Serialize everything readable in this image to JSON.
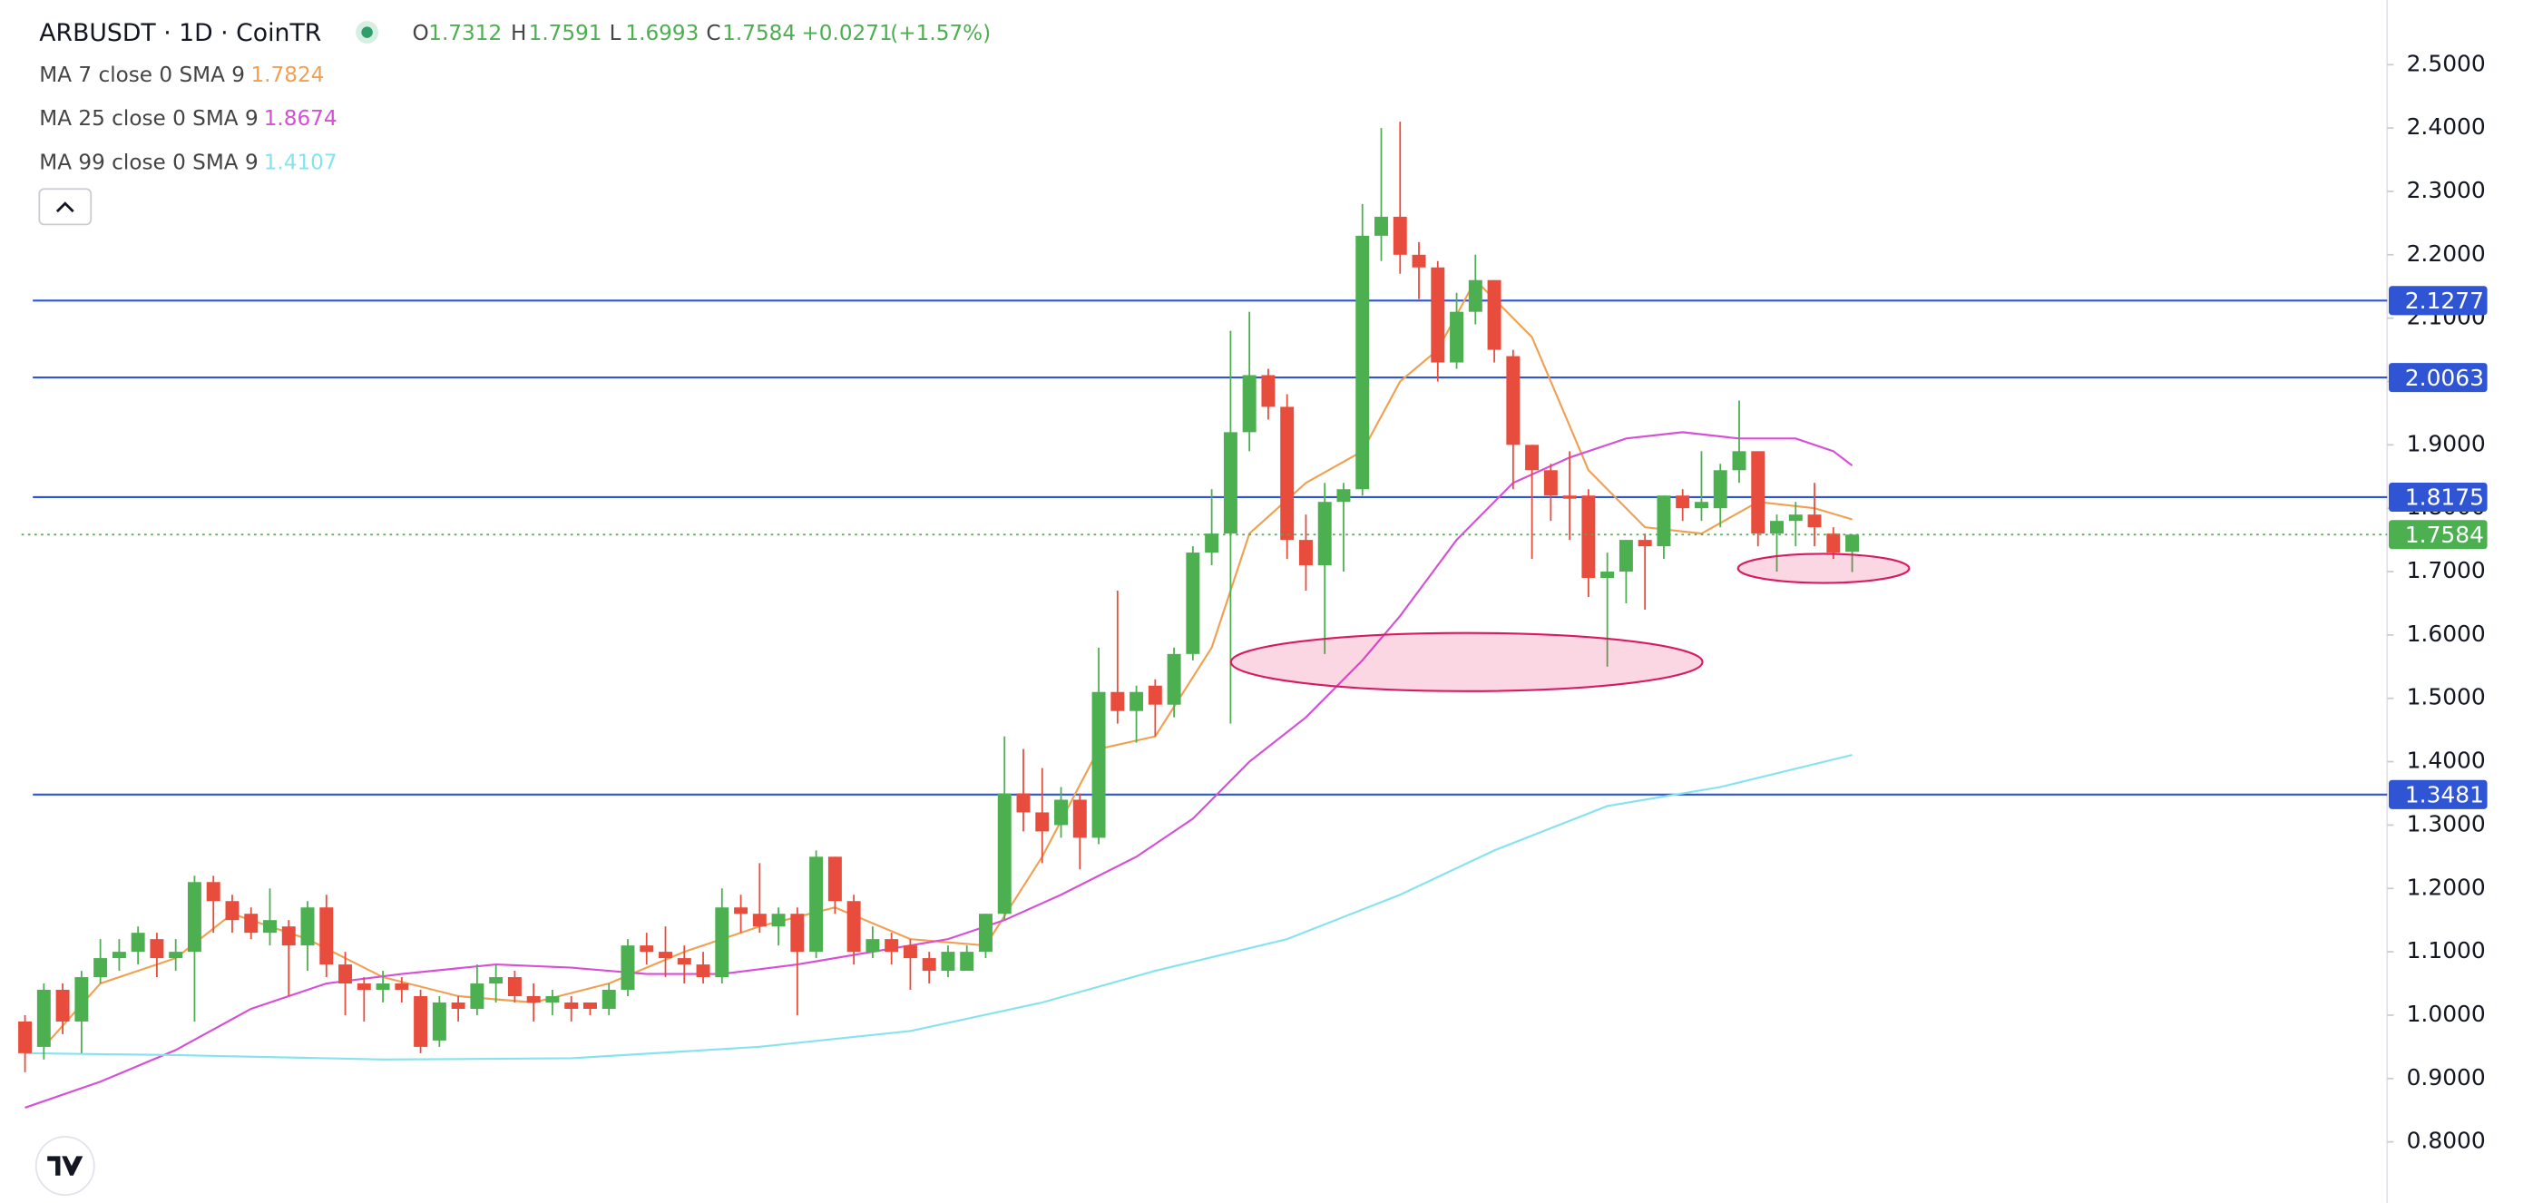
{
  "header": {
    "symbol": "ARBUSDT · 1D · CoinTR",
    "ohlc_labels": [
      "O",
      "H",
      "L",
      "C"
    ],
    "change": "+0.0271",
    "change_pct": "(+1.57%)"
  },
  "chart_data": {
    "type": "candlestick",
    "up_color": "#4caf50",
    "down_color": "#e74c3c",
    "xlim": [
      -1.3,
      125.4
    ],
    "ylim": [
      0.7,
      2.6
    ],
    "yticks": [
      {
        "value": 2.5,
        "label": "2.5000"
      },
      {
        "value": 2.4,
        "label": "2.4000"
      },
      {
        "value": 2.3,
        "label": "2.3000"
      },
      {
        "value": 2.2,
        "label": "2.2000"
      },
      {
        "value": 2.1,
        "label": "2.1000"
      },
      {
        "value": 2.0,
        "label": "2.0000"
      },
      {
        "value": 1.9,
        "label": "1.9000"
      },
      {
        "value": 1.8,
        "label": "1.8000"
      },
      {
        "value": 1.7,
        "label": "1.7000"
      },
      {
        "value": 1.6,
        "label": "1.6000"
      },
      {
        "value": 1.5,
        "label": "1.5000"
      },
      {
        "value": 1.4,
        "label": "1.4000"
      },
      {
        "value": 1.3,
        "label": "1.3000"
      },
      {
        "value": 1.2,
        "label": "1.2000"
      },
      {
        "value": 1.1,
        "label": "1.1000"
      },
      {
        "value": 1.0,
        "label": "1.0000"
      },
      {
        "value": 0.9,
        "label": "0.9000"
      },
      {
        "value": 0.8,
        "label": "0.8000"
      }
    ],
    "grid": false,
    "open": [
      0.99,
      0.95,
      1.04,
      0.99,
      1.06,
      1.09,
      1.1,
      1.12,
      1.09,
      1.1,
      1.21,
      1.18,
      1.16,
      1.13,
      1.14,
      1.11,
      1.17,
      1.08,
      1.05,
      1.04,
      1.05,
      1.03,
      0.96,
      1.02,
      1.01,
      1.05,
      1.06,
      1.03,
      1.02,
      1.02,
      1.02,
      1.01,
      1.04,
      1.11,
      1.1,
      1.09,
      1.08,
      1.06,
      1.17,
      1.16,
      1.14,
      1.16,
      1.1,
      1.25,
      1.18,
      1.1,
      1.12,
      1.11,
      1.09,
      1.07,
      1.07,
      1.1,
      1.16,
      1.35,
      1.32,
      1.3,
      1.34,
      1.28,
      1.51,
      1.48,
      1.52,
      1.49,
      1.57,
      1.73,
      1.76,
      1.92,
      2.01,
      1.96,
      1.75,
      1.71,
      1.81,
      1.83,
      2.23,
      2.26,
      2.2,
      2.18,
      2.03,
      2.11,
      2.16,
      2.04,
      1.9,
      1.86,
      1.82,
      1.82,
      1.69,
      1.7,
      1.75,
      1.74,
      1.82,
      1.8,
      1.8,
      1.86,
      1.89,
      1.76,
      1.78,
      1.79,
      1.76,
      1.7312
    ],
    "high": [
      1.0,
      1.05,
      1.05,
      1.07,
      1.12,
      1.12,
      1.14,
      1.13,
      1.12,
      1.22,
      1.22,
      1.19,
      1.17,
      1.2,
      1.15,
      1.18,
      1.19,
      1.1,
      1.06,
      1.07,
      1.06,
      1.04,
      1.03,
      1.03,
      1.08,
      1.08,
      1.07,
      1.05,
      1.04,
      1.03,
      1.02,
      1.05,
      1.12,
      1.13,
      1.14,
      1.11,
      1.1,
      1.2,
      1.19,
      1.24,
      1.17,
      1.17,
      1.26,
      1.25,
      1.19,
      1.14,
      1.13,
      1.12,
      1.1,
      1.11,
      1.11,
      1.16,
      1.44,
      1.42,
      1.39,
      1.36,
      1.35,
      1.58,
      1.67,
      1.52,
      1.53,
      1.58,
      1.74,
      1.83,
      2.08,
      2.11,
      2.02,
      1.98,
      1.79,
      1.84,
      1.84,
      2.28,
      2.4,
      2.41,
      2.22,
      2.19,
      2.14,
      2.2,
      2.16,
      2.05,
      1.9,
      1.87,
      1.89,
      1.83,
      1.73,
      1.75,
      1.76,
      1.82,
      1.83,
      1.89,
      1.87,
      1.97,
      1.89,
      1.79,
      1.81,
      1.84,
      1.77,
      1.7591
    ],
    "low": [
      0.91,
      0.93,
      0.97,
      0.94,
      1.05,
      1.07,
      1.08,
      1.06,
      1.07,
      0.99,
      1.13,
      1.13,
      1.12,
      1.11,
      1.03,
      1.07,
      1.06,
      1.0,
      0.99,
      1.02,
      1.02,
      0.94,
      0.95,
      0.99,
      1.0,
      1.02,
      1.02,
      0.99,
      1.0,
      0.99,
      1.0,
      1.0,
      1.03,
      1.08,
      1.06,
      1.05,
      1.05,
      1.05,
      1.13,
      1.13,
      1.11,
      1.0,
      1.09,
      1.16,
      1.08,
      1.09,
      1.08,
      1.04,
      1.05,
      1.06,
      1.07,
      1.09,
      1.15,
      1.29,
      1.24,
      1.28,
      1.23,
      1.27,
      1.46,
      1.43,
      1.44,
      1.47,
      1.56,
      1.71,
      1.46,
      1.89,
      1.94,
      1.72,
      1.67,
      1.57,
      1.7,
      1.82,
      2.19,
      2.17,
      2.13,
      2.0,
      2.02,
      2.09,
      2.03,
      1.83,
      1.72,
      1.78,
      1.75,
      1.66,
      1.55,
      1.65,
      1.64,
      1.72,
      1.78,
      1.78,
      1.77,
      1.84,
      1.74,
      1.7,
      1.74,
      1.74,
      1.72,
      1.6993
    ],
    "close": [
      0.94,
      1.04,
      0.99,
      1.06,
      1.09,
      1.1,
      1.13,
      1.09,
      1.1,
      1.21,
      1.18,
      1.15,
      1.13,
      1.15,
      1.11,
      1.17,
      1.08,
      1.05,
      1.04,
      1.05,
      1.04,
      0.95,
      1.02,
      1.01,
      1.05,
      1.06,
      1.03,
      1.02,
      1.03,
      1.01,
      1.01,
      1.04,
      1.11,
      1.1,
      1.09,
      1.08,
      1.06,
      1.17,
      1.16,
      1.14,
      1.16,
      1.1,
      1.25,
      1.18,
      1.1,
      1.12,
      1.1,
      1.09,
      1.07,
      1.1,
      1.1,
      1.16,
      1.35,
      1.32,
      1.29,
      1.34,
      1.28,
      1.51,
      1.48,
      1.51,
      1.49,
      1.57,
      1.73,
      1.76,
      1.92,
      2.01,
      1.96,
      1.75,
      1.71,
      1.81,
      1.83,
      2.23,
      2.26,
      2.2,
      2.18,
      2.03,
      2.11,
      2.16,
      2.05,
      1.9,
      1.86,
      1.82,
      1.815,
      1.69,
      1.7,
      1.75,
      1.74,
      1.82,
      1.8,
      1.81,
      1.86,
      1.89,
      1.76,
      1.78,
      1.79,
      1.77,
      1.73,
      1.7584
    ],
    "ma": [
      {
        "name": "MA 7 close 0 SMA 9",
        "color": "#f0a050",
        "x": [
          1,
          4,
          8,
          11,
          15,
          19,
          23,
          27,
          31,
          35,
          39,
          43,
          47,
          51,
          54,
          57,
          60,
          63,
          65,
          68,
          71,
          73,
          75,
          77,
          80,
          83,
          86,
          89,
          92,
          95,
          97
        ],
        "values": [
          0.95,
          1.05,
          1.09,
          1.16,
          1.12,
          1.06,
          1.03,
          1.02,
          1.05,
          1.1,
          1.14,
          1.17,
          1.12,
          1.11,
          1.25,
          1.42,
          1.44,
          1.58,
          1.76,
          1.84,
          1.89,
          2.0,
          2.05,
          2.16,
          2.07,
          1.86,
          1.77,
          1.76,
          1.81,
          1.8,
          1.7824
        ]
      },
      {
        "name": "MA 25 close 0 SMA 9",
        "color": "#d64fd6",
        "x": [
          0,
          4,
          8,
          12,
          16,
          20,
          25,
          29,
          33,
          37,
          41,
          45,
          49,
          52,
          55,
          59,
          62,
          65,
          68,
          71,
          73,
          76,
          79,
          82,
          85,
          88,
          91,
          94,
          96,
          97
        ],
        "values": [
          0.854,
          0.895,
          0.945,
          1.01,
          1.05,
          1.065,
          1.08,
          1.075,
          1.065,
          1.065,
          1.08,
          1.1,
          1.12,
          1.15,
          1.19,
          1.25,
          1.31,
          1.4,
          1.47,
          1.56,
          1.63,
          1.75,
          1.84,
          1.88,
          1.91,
          1.92,
          1.91,
          1.91,
          1.89,
          1.8674
        ]
      },
      {
        "name": "MA 99 close 0 SMA 9",
        "color": "#86e3ee",
        "x": [
          0,
          8,
          19,
          29,
          39,
          47,
          54,
          60,
          67,
          73,
          78,
          84,
          90,
          97
        ],
        "values": [
          0.94,
          0.937,
          0.93,
          0.932,
          0.95,
          0.975,
          1.02,
          1.07,
          1.12,
          1.19,
          1.26,
          1.33,
          1.36,
          1.4107
        ]
      }
    ],
    "levels": [
      2.1277,
      2.0063,
      1.8175,
      1.3481
    ],
    "level_color": "#2f55d4"
  }
}
